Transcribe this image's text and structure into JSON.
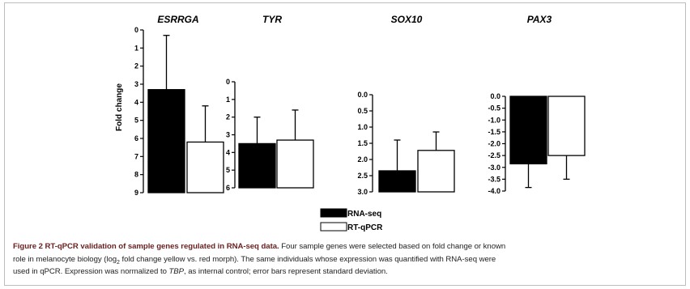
{
  "chart_data": [
    {
      "type": "bar",
      "title": "ESRRGA",
      "ylabel": "Fold change",
      "ylim": [
        0,
        9
      ],
      "yticks": [
        "0",
        "1",
        "2",
        "3",
        "4",
        "5",
        "6",
        "7",
        "8",
        "9"
      ],
      "series": [
        {
          "name": "RNA-seq",
          "values": [
            5.7
          ],
          "error": [
            3.0
          ]
        },
        {
          "name": "RT-qPCR",
          "values": [
            2.8
          ],
          "error": [
            2.0
          ]
        }
      ]
    },
    {
      "type": "bar",
      "title": "TYR",
      "ylim": [
        0,
        6
      ],
      "yticks": [
        "0",
        "1",
        "2",
        "3",
        "4",
        "5",
        "6"
      ],
      "series": [
        {
          "name": "RNA-seq",
          "values": [
            2.5
          ],
          "error": [
            1.5
          ]
        },
        {
          "name": "RT-qPCR",
          "values": [
            2.7
          ],
          "error": [
            1.7
          ]
        }
      ]
    },
    {
      "type": "bar",
      "title": "SOX10",
      "ylim": [
        0,
        3
      ],
      "yticks": [
        "0.0",
        "0.5",
        "1.0",
        "1.5",
        "2.0",
        "2.5",
        "3.0"
      ],
      "series": [
        {
          "name": "RNA-seq",
          "values": [
            0.65
          ],
          "error": [
            0.95
          ]
        },
        {
          "name": "RT-qPCR",
          "values": [
            1.28
          ],
          "error": [
            0.57
          ]
        }
      ]
    },
    {
      "type": "bar",
      "title": "PAX3",
      "ylim": [
        -4,
        0
      ],
      "yticks": [
        "0.0",
        "-0.5",
        "-1.0",
        "-1.5",
        "-2.0",
        "-2.5",
        "-3.0",
        "-3.5",
        "-4.0"
      ],
      "series": [
        {
          "name": "RNA-seq",
          "values": [
            -2.85
          ],
          "error": [
            1.0
          ]
        },
        {
          "name": "RT-qPCR",
          "values": [
            -2.5
          ],
          "error": [
            1.0
          ]
        }
      ]
    }
  ],
  "legend": {
    "items": [
      {
        "label": "RNA-seq",
        "fill": "#000000"
      },
      {
        "label": "RT-qPCR",
        "fill": "#ffffff"
      }
    ]
  },
  "caption": {
    "title": "Figure 2 RT-qPCR validation of sample genes regulated in RNA-seq data.",
    "line1_rest": " Four sample genes were selected based on fold change or known",
    "line2_a": "role in melanocyte biology (log",
    "line2_sub": "2",
    "line2_b": " fold change yellow vs. red morph). The same individuals whose expression was quantified with RNA-seq were",
    "line3_a": "used in qPCR. Expression was normalized to ",
    "line3_italic": "TBP",
    "line3_b": ", as internal control; error bars represent standard deviation."
  }
}
